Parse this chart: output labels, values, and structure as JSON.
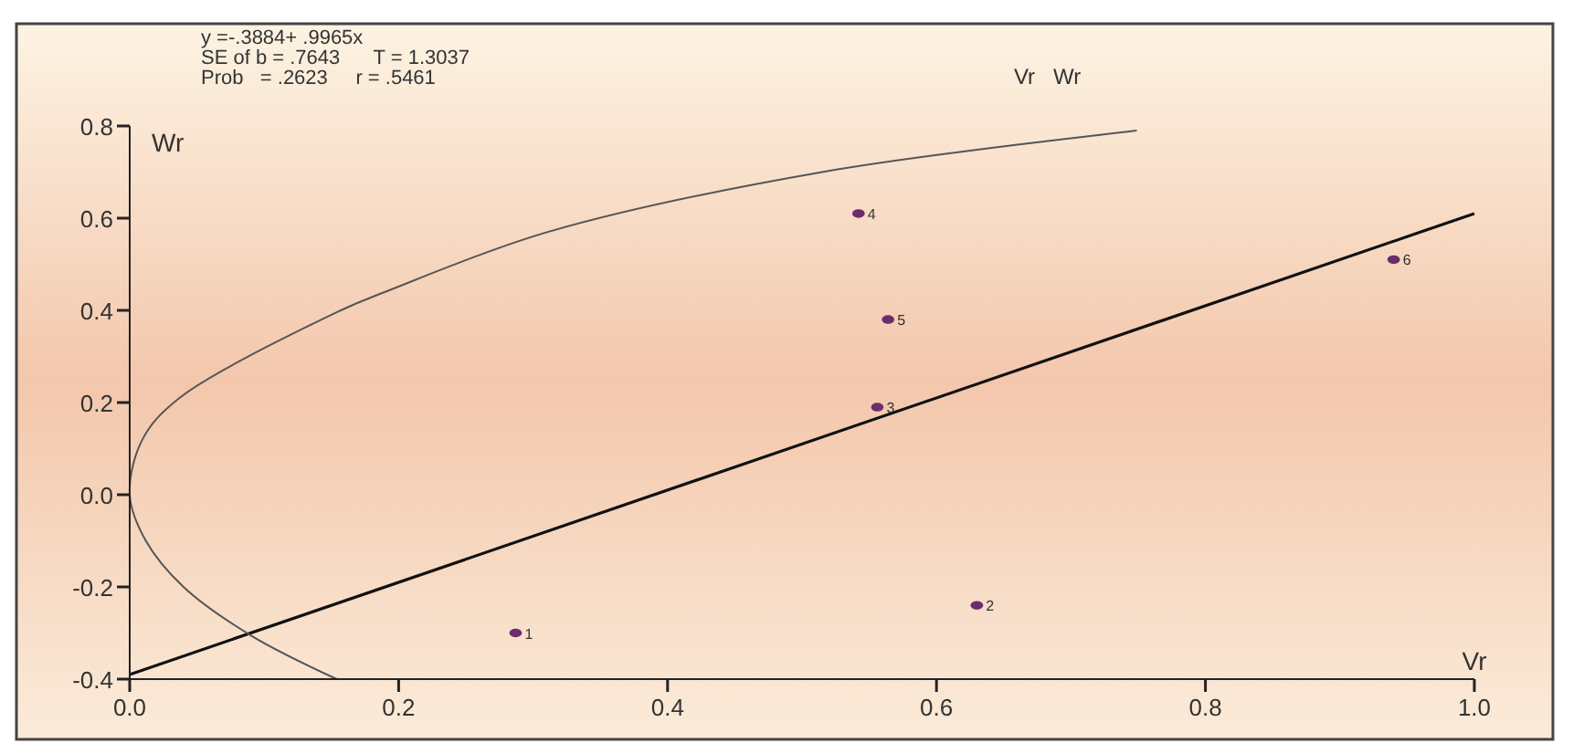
{
  "chart_data": {
    "type": "scatter",
    "xlabel": "Vr",
    "ylabel": "Wr",
    "annotations": [
      "y =-.3884+ .9965x",
      "SE of b = .7643      T = 1.3037",
      "Prob   = .2623     r = .5461",
      "Vr   Wr",
      {
        "text": "1",
        "x": 0.287,
        "y": -0.3
      },
      {
        "text": "2",
        "x": 0.63,
        "y": -0.24
      },
      {
        "text": "3",
        "x": 0.556,
        "y": 0.19
      },
      {
        "text": "4",
        "x": 0.542,
        "y": 0.61
      },
      {
        "text": "5",
        "x": 0.564,
        "y": 0.38
      },
      {
        "text": "6",
        "x": 0.94,
        "y": 0.51
      }
    ],
    "xlim": [
      0,
      1
    ],
    "ylim": [
      -0.4,
      0.8
    ],
    "xticks": [
      {
        "value": 0,
        "label": "0.0"
      },
      0.2,
      0.4,
      0.6,
      0.8,
      {
        "value": 1,
        "label": "1.0"
      }
    ],
    "yticks": [
      {
        "value": -0.4,
        "label": "-0.4"
      },
      {
        "value": -0.2,
        "label": "-0.2"
      },
      {
        "value": 0,
        "label": "0.0"
      },
      0.2,
      0.4,
      0.6,
      0.8
    ],
    "grid": false,
    "series": [
      {
        "color": "#6b2d6b",
        "marker": "circle",
        "x": [
          0.287,
          0.63,
          0.556,
          0.542,
          0.564,
          0.94
        ],
        "values": [
          -0.3,
          -0.24,
          0.19,
          0.61,
          0.38,
          0.51
        ]
      },
      {
        "type": "line",
        "marker": "none",
        "color": "#111111",
        "x": [
          0,
          1
        ],
        "values": [
          -0.39,
          0.61
        ]
      },
      {
        "type": "line",
        "marker": "none",
        "color": "#555555",
        "x": [
          0.154,
          0.09,
          0.04,
          0.012,
          0,
          0.0095,
          0.037,
          0.157,
          0.19,
          0.311,
          0.515,
          0.749
        ],
        "values": [
          -0.4,
          -0.305,
          -0.2,
          -0.1,
          0,
          0.12,
          0.21,
          0.4,
          0.44,
          0.57,
          0.7,
          0.79
        ]
      }
    ]
  }
}
